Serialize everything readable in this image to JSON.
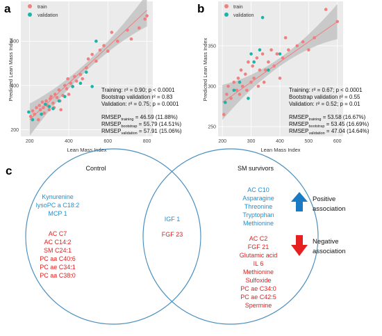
{
  "panels": {
    "a": {
      "letter": "a",
      "legend": [
        "train",
        "validation"
      ],
      "xlabel": "Lean Mass Index",
      "ylabel": "Predicted Lean Mass Index",
      "xticks": [
        "200",
        "400",
        "600",
        "800"
      ],
      "yticks": [
        "200",
        "400",
        "600"
      ],
      "stats": [
        "Training:  r² = 0.90; p < 0.0001",
        "Bootstrap validation  r² = 0.83",
        "Validation:  r² = 0.75; p = 0.0001"
      ],
      "rmsep": [
        {
          "base": "RMSEP",
          "sub": "training",
          "value": " = 46.59 (11.88%)"
        },
        {
          "base": "RMSEP",
          "sub": "bootstrap",
          "value": " = 55.79 (14.51%)"
        },
        {
          "base": "RMSEP",
          "sub": "validation",
          "value": " = 57.91 (15.06%)"
        }
      ]
    },
    "b": {
      "letter": "b",
      "legend": [
        "train",
        "validation"
      ],
      "xlabel": "Lean Mass Index",
      "ylabel": "Predicted Lean Mass Index",
      "xticks": [
        "200",
        "300",
        "400",
        "500",
        "600"
      ],
      "yticks": [
        "250",
        "300",
        "350"
      ],
      "stats": [
        "Training:  r² = 0.67; p < 0.0001",
        "Bootstrap validation  r² = 0.55",
        "Validation:  r² = 0.52; p = 0.01"
      ],
      "rmsep": [
        {
          "base": "RMSEP",
          "sub": "training",
          "value": " = 53.58 (16.67%)"
        },
        {
          "base": "RMSEP",
          "sub": "bootstrap",
          "value": " = 53.45 (16.69%)"
        },
        {
          "base": "RMSEP",
          "sub": "validation",
          "value": " = 47.04 (14.64%)"
        }
      ]
    },
    "c": {
      "letter": "c",
      "left_title": "Control",
      "right_title": "SM survivors",
      "left_blue": [
        "Kynurenine",
        "lysoPC a C18:2",
        "MCP 1"
      ],
      "left_red": [
        "AC C7",
        "AC C14:2",
        "SM C24:1",
        "PC aa C40:6",
        "PC ae C34:1",
        "PC aa C38:0"
      ],
      "middle_blue": [
        "IGF 1"
      ],
      "middle_red": [
        "FGF 23"
      ],
      "right_blue": [
        "AC C10",
        "Asparagine",
        "Threonine",
        "Tryptophan",
        "Methionine"
      ],
      "right_red": [
        "AC C2",
        "FGF 21",
        "Glutamic acid",
        "IL 6",
        "Methionine",
        "Sulfoxide",
        "PC ae C34:0",
        "PC ae C42:5",
        "Spermine"
      ],
      "positive_label": [
        "Positive",
        "association"
      ],
      "negative_label": [
        "Negative",
        "association"
      ]
    }
  },
  "colors": {
    "train": "#f08080",
    "validation": "#1ab5a8",
    "blue_text": "#1f8fd0",
    "red_text": "#e02020",
    "circle": "#4a8fbf",
    "arrow_up": "#1a7ac4",
    "arrow_down": "#e52020",
    "panel_bg": "#ebebeb"
  },
  "chart_data": [
    {
      "type": "scatter",
      "panel": "a",
      "xlabel": "Lean Mass Index",
      "ylabel": "Predicted Lean Mass Index",
      "xlim": [
        155,
        830
      ],
      "ylim": [
        170,
        780
      ],
      "series": [
        {
          "name": "train",
          "points": [
            [
              205,
              260
            ],
            [
              215,
              285
            ],
            [
              225,
              270
            ],
            [
              235,
              300
            ],
            [
              245,
              245
            ],
            [
              250,
              310
            ],
            [
              255,
              290
            ],
            [
              265,
              325
            ],
            [
              270,
              300
            ],
            [
              275,
              275
            ],
            [
              285,
              330
            ],
            [
              290,
              310
            ],
            [
              300,
              290
            ],
            [
              305,
              340
            ],
            [
              310,
              350
            ],
            [
              320,
              320
            ],
            [
              325,
              300
            ],
            [
              330,
              360
            ],
            [
              340,
              345
            ],
            [
              350,
              380
            ],
            [
              355,
              330
            ],
            [
              360,
              290
            ],
            [
              370,
              355
            ],
            [
              380,
              400
            ],
            [
              390,
              385
            ],
            [
              395,
              430
            ],
            [
              400,
              360
            ],
            [
              410,
              410
            ],
            [
              420,
              395
            ],
            [
              430,
              440
            ],
            [
              440,
              420
            ],
            [
              460,
              450
            ],
            [
              470,
              430
            ],
            [
              490,
              480
            ],
            [
              500,
              520
            ],
            [
              520,
              540
            ],
            [
              540,
              510
            ],
            [
              560,
              560
            ],
            [
              580,
              580
            ],
            [
              600,
              555
            ],
            [
              620,
              640
            ],
            [
              650,
              600
            ],
            [
              700,
              650
            ],
            [
              720,
              610
            ],
            [
              760,
              660
            ],
            [
              790,
              700
            ],
            [
              800,
              715
            ]
          ]
        },
        {
          "name": "validation",
          "points": [
            [
              195,
              280
            ],
            [
              215,
              245
            ],
            [
              260,
              270
            ],
            [
              280,
              315
            ],
            [
              300,
              305
            ],
            [
              320,
              295
            ],
            [
              350,
              330
            ],
            [
              380,
              350
            ],
            [
              420,
              395
            ],
            [
              460,
              410
            ],
            [
              490,
              460
            ],
            [
              520,
              395
            ],
            [
              540,
              600
            ]
          ]
        }
      ],
      "fit_line": {
        "x": [
          200,
          800
        ],
        "y": [
          245,
          740
        ]
      }
    },
    {
      "type": "scatter",
      "panel": "b",
      "xlabel": "Lean Mass Index",
      "ylabel": "Predicted Lean Mass Index",
      "xlim": [
        185,
        620
      ],
      "ylim": [
        238,
        405
      ],
      "series": [
        {
          "name": "train",
          "points": [
            [
              205,
              265
            ],
            [
              215,
              290
            ],
            [
              220,
              300
            ],
            [
              230,
              285
            ],
            [
              240,
              305
            ],
            [
              250,
              295
            ],
            [
              255,
              310
            ],
            [
              260,
              290
            ],
            [
              265,
              320
            ],
            [
              270,
              300
            ],
            [
              280,
              315
            ],
            [
              285,
              295
            ],
            [
              290,
              330
            ],
            [
              300,
              305
            ],
            [
              305,
              325
            ],
            [
              310,
              310
            ],
            [
              320,
              335
            ],
            [
              325,
              300
            ],
            [
              330,
              320
            ],
            [
              340,
              340
            ],
            [
              345,
              305
            ],
            [
              350,
              320
            ],
            [
              360,
              330
            ],
            [
              370,
              345
            ],
            [
              380,
              325
            ],
            [
              390,
              340
            ],
            [
              400,
              310
            ],
            [
              410,
              335
            ],
            [
              420,
              360
            ],
            [
              430,
              345
            ],
            [
              460,
              350
            ],
            [
              480,
              355
            ],
            [
              500,
              345
            ],
            [
              520,
              360
            ],
            [
              560,
              395
            ],
            [
              600,
              380
            ]
          ]
        },
        {
          "name": "validation",
          "points": [
            [
              210,
              280
            ],
            [
              240,
              295
            ],
            [
              260,
              305
            ],
            [
              290,
              285
            ],
            [
              300,
              340
            ],
            [
              310,
              330
            ],
            [
              330,
              345
            ],
            [
              340,
              385
            ],
            [
              360,
              320
            ],
            [
              400,
              340
            ]
          ]
        }
      ],
      "fit_line": {
        "x": [
          200,
          600
        ],
        "y": [
          280,
          380
        ]
      }
    }
  ]
}
